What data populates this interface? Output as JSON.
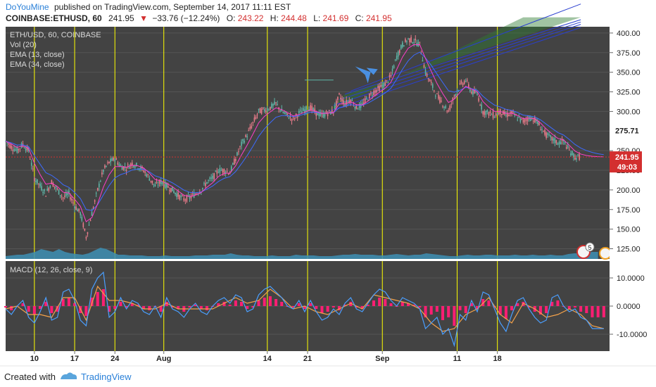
{
  "header": {
    "author": "DoYouMine",
    "published": "published on TradingView.com, September 14, 2017 11:11 EST",
    "symbol": "COINBASE:ETHUSD, 60",
    "last": "241.95",
    "change": "−33.76 (−12.24%)",
    "o_label": "O:",
    "o_value": "243.22",
    "h_label": "H:",
    "h_value": "244.48",
    "l_label": "L:",
    "l_value": "241.69",
    "c_label": "C:",
    "c_value": "241.95"
  },
  "overlay": {
    "line1": "ETH/USD, 60, COINBASE",
    "line2": "Vol (20)",
    "line3": "EMA (13, close)",
    "line4": "EMA (34, close)"
  },
  "macd": {
    "label": "MACD (12, 26, close, 9)"
  },
  "price_labels": {
    "marker": "275.71",
    "last": "241.95",
    "countdown": "49:03"
  },
  "event_badge": {
    "count": "5"
  },
  "footer": {
    "created_with": "Created with",
    "brand": "TradingView"
  },
  "colors": {
    "background": "#434343",
    "candle_up": "#5fb6a8",
    "candle_down": "#e87b8a",
    "ema13": "#ff3ec9",
    "ema34": "#3d6bff",
    "macd_line": "#4a9fff",
    "signal_line": "#f4a24a",
    "histogram": "#ff1e73",
    "volume": "#3d8fb4",
    "session_line": "#ffff00",
    "last_price": "#d32f2f",
    "annotation": "#4a90e2"
  },
  "chart_data": [
    {
      "type": "line",
      "title": "ETH/USD, 60, COINBASE",
      "series": [
        {
          "name": "ETH/USD",
          "x": [
            0,
            2,
            4,
            6,
            8,
            10,
            12,
            14,
            16,
            18,
            20,
            22,
            24,
            26,
            28,
            30,
            32,
            34,
            36,
            38,
            40,
            42,
            44,
            46,
            48,
            50,
            52,
            54,
            56,
            58,
            60,
            62,
            64,
            66,
            68,
            70,
            72,
            74,
            76,
            78,
            80,
            82,
            84,
            86,
            88,
            90,
            92,
            94,
            96,
            98,
            100,
            102,
            104,
            106,
            108,
            110,
            112,
            114,
            116,
            118,
            120,
            122,
            124,
            126,
            128,
            130,
            132,
            134,
            136,
            138,
            140,
            142,
            144,
            146,
            148,
            150,
            152,
            154,
            156,
            158,
            160,
            162,
            164,
            166,
            168,
            170,
            172,
            174,
            176,
            178,
            180,
            182,
            184,
            186,
            188,
            190,
            192,
            194,
            196,
            198,
            200,
            202,
            204,
            206,
            208
          ],
          "y": [
            262,
            255,
            250,
            258,
            250,
            215,
            205,
            195,
            210,
            200,
            190,
            195,
            180,
            170,
            140,
            170,
            200,
            225,
            235,
            240,
            230,
            228,
            234,
            230,
            225,
            215,
            205,
            210,
            205,
            200,
            193,
            188,
            190,
            195,
            200,
            210,
            215,
            225,
            225,
            222,
            240,
            258,
            270,
            285,
            300,
            302,
            305,
            310,
            300,
            295,
            290,
            298,
            302,
            305,
            298,
            295,
            298,
            300,
            320,
            310,
            315,
            305,
            308,
            318,
            325,
            330,
            335,
            345,
            370,
            385,
            392,
            390,
            385,
            350,
            335,
            320,
            310,
            300,
            320,
            333,
            340,
            325,
            322,
            300,
            298,
            295,
            300,
            295,
            298,
            292,
            287,
            292,
            290,
            280,
            270,
            265,
            260,
            262,
            250,
            242,
            241.95,
            241.95,
            241.95,
            241.95,
            241.95
          ]
        }
      ],
      "ylim": [
        112,
        408
      ],
      "y_ticks": [
        "400.00",
        "375.00",
        "350.00",
        "325.00",
        "300.00",
        "275.00",
        "250.00",
        "225.00",
        "200.00",
        "175.00",
        "150.00",
        "125.00"
      ],
      "x_ticks": [
        {
          "label": "10",
          "x": 10
        },
        {
          "label": "17",
          "x": 24
        },
        {
          "label": "24",
          "x": 38
        },
        {
          "label": "Aug",
          "x": 55
        },
        {
          "label": "14",
          "x": 91
        },
        {
          "label": "21",
          "x": 105
        },
        {
          "label": "Sep",
          "x": 131
        },
        {
          "label": "11",
          "x": 157
        },
        {
          "label": "18",
          "x": 171
        }
      ],
      "grid": true,
      "scale": "linear"
    },
    {
      "type": "line",
      "title": "MACD (12, 26, close, 9)",
      "series": [
        {
          "name": "MACD",
          "x": [
            0,
            2,
            4,
            6,
            8,
            10,
            12,
            14,
            16,
            18,
            20,
            22,
            24,
            26,
            28,
            30,
            32,
            34,
            36,
            38,
            40,
            42,
            44,
            46,
            48,
            50,
            52,
            54,
            56,
            58,
            60,
            62,
            64,
            66,
            68,
            70,
            72,
            74,
            76,
            78,
            80,
            82,
            84,
            86,
            88,
            90,
            92,
            94,
            96,
            98,
            100,
            102,
            104,
            106,
            108,
            110,
            112,
            114,
            116,
            118,
            120,
            122,
            124,
            126,
            128,
            130,
            132,
            134,
            136,
            138,
            140,
            142,
            144,
            146,
            148,
            150,
            152,
            154,
            156,
            158,
            160,
            162,
            164,
            166,
            168,
            170,
            172,
            174,
            176,
            178,
            180,
            182,
            184,
            186,
            188,
            190,
            192,
            194,
            196,
            198,
            200,
            202,
            204,
            206,
            208
          ],
          "y": [
            -1,
            -3,
            0,
            2,
            -4,
            -6,
            -2,
            3,
            -5,
            -4,
            5,
            6,
            2,
            -5,
            -7,
            6,
            10,
            12,
            -4,
            -2,
            3,
            -1,
            2,
            1,
            -2,
            -3,
            0,
            -4,
            3,
            -1,
            -2,
            -4,
            -1,
            1,
            -2,
            -3,
            0,
            2,
            3,
            1,
            4,
            3,
            -2,
            -1,
            4,
            6,
            7,
            5,
            3,
            0,
            -1,
            2,
            -2,
            2,
            -2,
            -5,
            -4,
            -1,
            -3,
            1,
            3,
            -1,
            -2,
            1,
            4,
            6,
            5,
            2,
            0,
            3,
            2,
            1,
            -1,
            -8,
            -6,
            -4,
            -10,
            -8,
            -14,
            -3,
            -5,
            2,
            -2,
            5,
            4,
            -1,
            -6,
            -9,
            -3,
            2,
            3,
            -1,
            -4,
            -6,
            -5,
            3,
            4,
            0,
            -2,
            -1,
            -4,
            -5,
            -8,
            -8,
            -8
          ]
        },
        {
          "name": "Signal",
          "x": [
            0,
            4,
            8,
            12,
            16,
            20,
            24,
            28,
            32,
            36,
            40,
            44,
            48,
            52,
            56,
            60,
            64,
            68,
            72,
            76,
            80,
            84,
            88,
            92,
            96,
            100,
            104,
            108,
            112,
            116,
            120,
            124,
            128,
            132,
            136,
            140,
            144,
            148,
            152,
            156,
            160,
            164,
            168,
            172,
            176,
            180,
            184,
            188,
            192,
            196,
            200,
            204,
            208
          ],
          "y": [
            -1,
            0,
            -3,
            -3,
            -4,
            3,
            3,
            -5,
            7,
            2,
            2,
            1,
            -1,
            -1,
            1,
            -1,
            -1,
            -1,
            -1,
            1,
            3,
            1,
            2,
            6,
            3,
            -1,
            0,
            -2,
            -3,
            -1,
            1,
            -1,
            4,
            3,
            2,
            1,
            -1,
            -6,
            -9,
            -8,
            -3,
            -1,
            3,
            -3,
            -6,
            1,
            -1,
            -4,
            -3,
            -1,
            -3,
            -7,
            -8
          ]
        }
      ],
      "ylim": [
        -16,
        16
      ],
      "y_ticks": [
        "10.0000",
        "0.0000",
        "-10.0000"
      ],
      "grid": true
    }
  ]
}
